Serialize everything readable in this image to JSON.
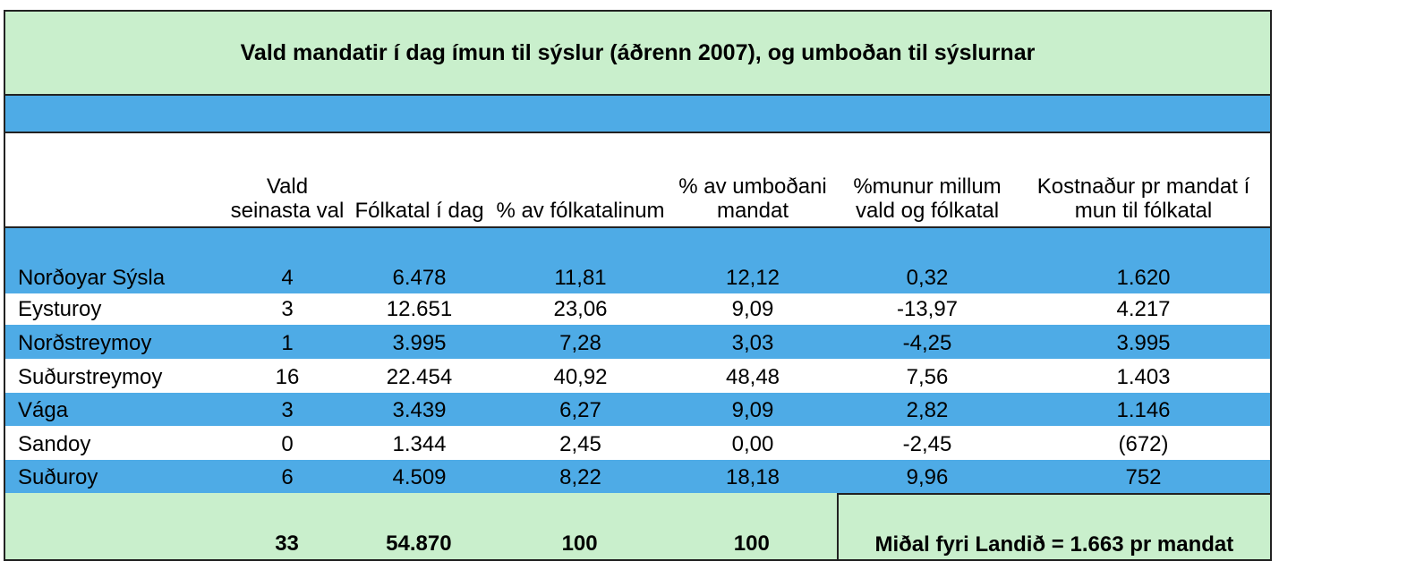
{
  "title": "Vald mandatir í dag ímun til sýslur (áðrenn 2007), og umboðan til sýslurnar",
  "headers": [
    "",
    "Vald seinasta val",
    "Fólkatal í dag",
    "% av fólkatalinum",
    "% av umboðani mandat",
    "%munur millum vald og fólkatal",
    "Kostnaður pr mandat í mun til fólkatal"
  ],
  "rows": [
    [
      "Norðoyar Sýsla",
      "4",
      "6.478",
      "11,81",
      "12,12",
      "0,32",
      "1.620"
    ],
    [
      "Eysturoy",
      "3",
      "12.651",
      "23,06",
      "9,09",
      "-13,97",
      "4.217"
    ],
    [
      "Norðstreymoy",
      "1",
      "3.995",
      "7,28",
      "3,03",
      "-4,25",
      "3.995"
    ],
    [
      "Suðurstreymoy",
      "16",
      "22.454",
      "40,92",
      "48,48",
      "7,56",
      "1.403"
    ],
    [
      "Vága",
      "3",
      "3.439",
      "6,27",
      "9,09",
      "2,82",
      "1.146"
    ],
    [
      "Sandoy",
      "0",
      "1.344",
      "2,45",
      "0,00",
      "-2,45",
      "(672)"
    ],
    [
      "Suðuroy",
      "6",
      "4.509",
      "8,22",
      "18,18",
      "9,96",
      "752"
    ]
  ],
  "totals": [
    "",
    "33",
    "54.870",
    "100",
    "100"
  ],
  "summary": "Miðal fyri Landið = 1.663 pr mandat",
  "colors": {
    "green": "#c9efcc",
    "blue": "#4eabe6"
  }
}
